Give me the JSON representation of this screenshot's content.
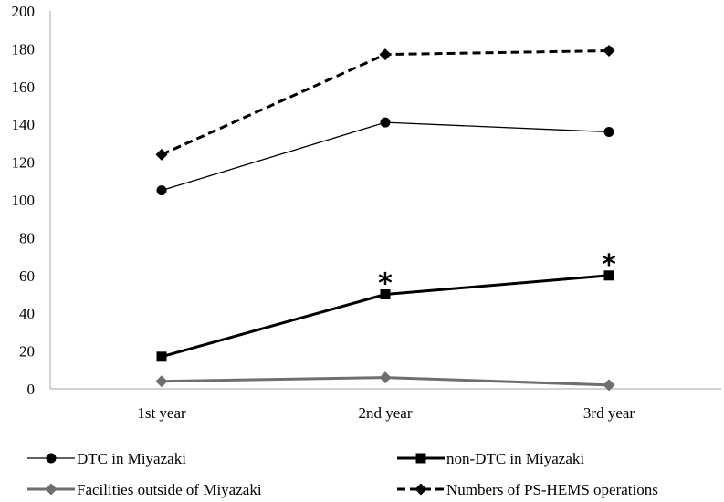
{
  "chart_data": {
    "type": "line",
    "categories": [
      "1st year",
      "2nd year",
      "3rd year"
    ],
    "ylim": [
      0,
      200
    ],
    "yticks": [
      0,
      20,
      40,
      60,
      80,
      100,
      120,
      140,
      160,
      180,
      200
    ],
    "series": [
      {
        "name": "DTC in Miyazaki",
        "values": [
          105,
          141,
          136
        ],
        "color": "#000000",
        "marker": "circle",
        "dash": "solid",
        "weight": "thin"
      },
      {
        "name": "non-DTC in Miyazaki",
        "values": [
          17,
          50,
          60
        ],
        "color": "#000000",
        "marker": "square",
        "dash": "solid",
        "weight": "thick"
      },
      {
        "name": "Facilities outside of Miyazaki",
        "values": [
          4,
          6,
          2
        ],
        "color": "#6e6e6e",
        "marker": "diamond",
        "dash": "solid",
        "weight": "thick"
      },
      {
        "name": "Numbers of PS-HEMS operations",
        "values": [
          124,
          177,
          179
        ],
        "color": "#000000",
        "marker": "diamond",
        "dash": "dashed",
        "weight": "thick"
      }
    ],
    "annotations": [
      {
        "text": "*",
        "series": "non-DTC in Miyazaki",
        "category": "2nd year"
      },
      {
        "text": "*",
        "series": "non-DTC in Miyazaki",
        "category": "3rd year"
      }
    ]
  }
}
